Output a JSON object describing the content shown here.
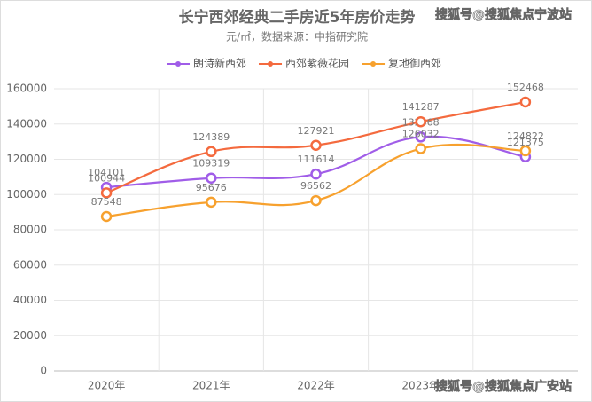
{
  "chart_data": {
    "type": "line",
    "title": "长宁西郊经典二手房近5年房价走势",
    "subtitle": "元/㎡，数据来源：中指研究院",
    "categories": [
      "2020年",
      "2021年",
      "2022年",
      "2023年",
      null
    ],
    "series": [
      {
        "name": "朗诗新西郊",
        "color": "#a05de8",
        "values": [
          104101,
          109319,
          111614,
          132668,
          121375
        ]
      },
      {
        "name": "西郊紫薇花园",
        "color": "#f46a3e",
        "values": [
          100944,
          124389,
          127921,
          141287,
          152468
        ]
      },
      {
        "name": "复地御西郊",
        "color": "#f7a12e",
        "values": [
          87548,
          95676,
          96562,
          126032,
          124822
        ]
      }
    ],
    "ylim": [
      0,
      160000
    ],
    "yticks": [
      0,
      20000,
      40000,
      60000,
      80000,
      100000,
      120000,
      140000,
      160000
    ],
    "grid": true,
    "legend": "top",
    "watermarks": [
      "搜狐号@搜狐焦点宁波站",
      "搜狐号@搜狐焦点广安站"
    ]
  }
}
